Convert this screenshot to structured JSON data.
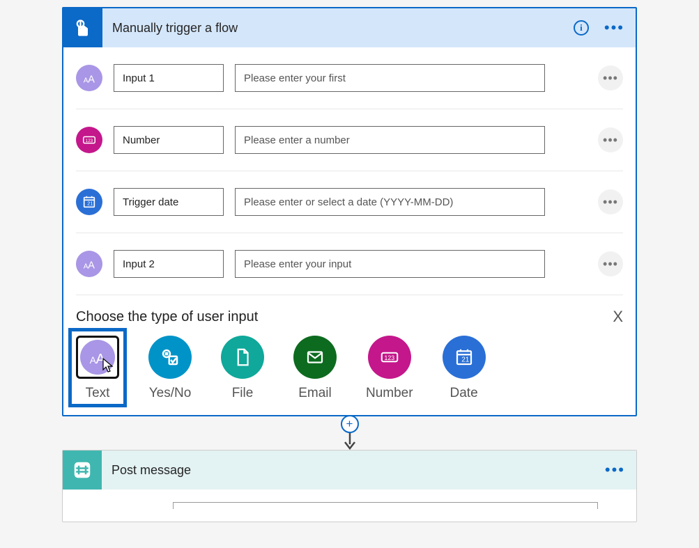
{
  "trigger": {
    "title": "Manually trigger a flow",
    "header_bg": "#d4e6fa",
    "header_icon_bg": "#0b69c7",
    "border_color": "#0b69c7",
    "inputs": [
      {
        "icon": "text",
        "icon_bg": "#a996e6",
        "name": "Input 1",
        "desc": "Please enter your first"
      },
      {
        "icon": "number",
        "icon_bg": "#c4178b",
        "name": "Number",
        "desc": "Please enter a number"
      },
      {
        "icon": "date",
        "icon_bg": "#2a6fd6",
        "name": "Trigger date",
        "desc": "Please enter or select a date (YYYY-MM-DD)"
      },
      {
        "icon": "text",
        "icon_bg": "#a996e6",
        "name": "Input 2",
        "desc": "Please enter your input"
      }
    ],
    "choose": {
      "title": "Choose the type of user input",
      "close": "X",
      "options": [
        {
          "key": "text",
          "label": "Text",
          "bg": "#a996e6",
          "selected": true
        },
        {
          "key": "yesno",
          "label": "Yes/No",
          "bg": "#0093c8",
          "selected": false
        },
        {
          "key": "file",
          "label": "File",
          "bg": "#0fa89a",
          "selected": false
        },
        {
          "key": "email",
          "label": "Email",
          "bg": "#0d6b1f",
          "selected": false
        },
        {
          "key": "number",
          "label": "Number",
          "bg": "#c4178b",
          "selected": false
        },
        {
          "key": "date",
          "label": "Date",
          "bg": "#2a6fd6",
          "selected": false
        }
      ]
    }
  },
  "post": {
    "title": "Post message",
    "header_bg": "#e3f2f2",
    "header_icon_bg": "#3fb7b0"
  }
}
